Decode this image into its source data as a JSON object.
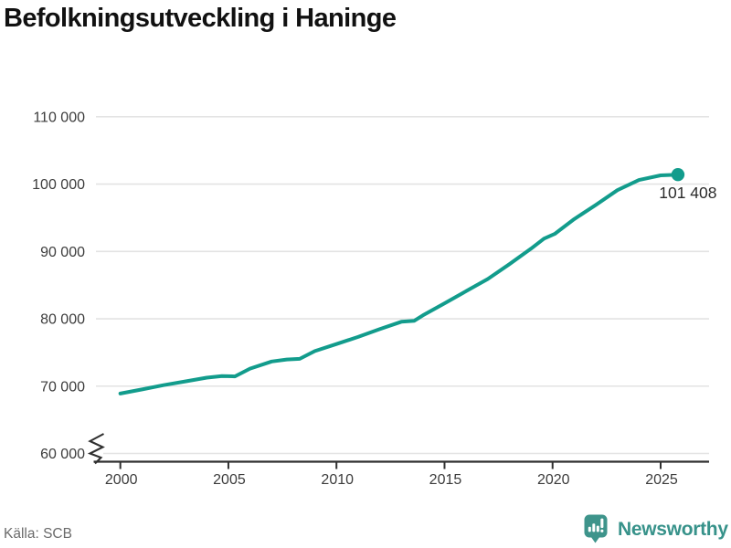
{
  "header": {
    "title": "Befolkningsutveckling i Haninge"
  },
  "chart_data": {
    "type": "line",
    "title": "Befolkningsutveckling i Haninge",
    "x": [
      2000,
      2001,
      2002,
      2003,
      2004,
      2004.7,
      2005.3,
      2006,
      2007,
      2007.7,
      2008.3,
      2009,
      2010,
      2011,
      2012,
      2013,
      2013.6,
      2014,
      2015,
      2016,
      2017,
      2018,
      2019,
      2019.6,
      2020.1,
      2021,
      2022,
      2023,
      2024,
      2025,
      2025.8
    ],
    "values": [
      68900,
      69500,
      70150,
      70700,
      71250,
      71500,
      71450,
      72600,
      73650,
      73950,
      74050,
      75200,
      76250,
      77300,
      78450,
      79550,
      79700,
      80500,
      82300,
      84100,
      85900,
      88100,
      90400,
      91900,
      92600,
      94800,
      96900,
      99100,
      100600,
      101300,
      101408
    ],
    "xlabel": "",
    "ylabel": "",
    "ylim": [
      60000,
      111500
    ],
    "xlim": [
      1998.9,
      2027.2
    ],
    "grid": true,
    "axis_break_at_bottom": true,
    "legend": "none",
    "line_color": "#129c8c",
    "grid_color": "#e3e3e3",
    "axis_color": "#303030",
    "tick_label_color": "#3c3c3c",
    "end_point": {
      "x": 2025.8,
      "value": 101408,
      "label": "101 408",
      "label_color": "#2b2b2b"
    },
    "y_axis_ticks": [
      {
        "value": 60000,
        "label": "60 000"
      },
      {
        "value": 70000,
        "label": "70 000"
      },
      {
        "value": 80000,
        "label": "80 000"
      },
      {
        "value": 90000,
        "label": "90 000"
      },
      {
        "value": 100000,
        "label": "100 000"
      },
      {
        "value": 110000,
        "label": "110 000"
      }
    ],
    "x_axis_ticks": [
      {
        "value": 2000,
        "label": "2000"
      },
      {
        "value": 2005,
        "label": "2005"
      },
      {
        "value": 2010,
        "label": "2010"
      },
      {
        "value": 2015,
        "label": "2015"
      },
      {
        "value": 2020,
        "label": "2020"
      },
      {
        "value": 2025,
        "label": "2025"
      }
    ]
  },
  "footer": {
    "source": "Källa: SCB",
    "brand_name": "Newsworthy",
    "brand_color": "#37928a",
    "brand_icon_color": "#3e948b"
  }
}
